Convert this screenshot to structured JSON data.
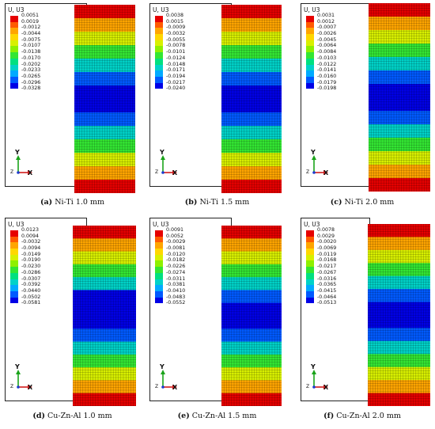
{
  "legend_colors": [
    "#e60000",
    "#ff5a00",
    "#ffa500",
    "#ffd700",
    "#d8f000",
    "#8ef000",
    "#33e633",
    "#00e080",
    "#00d2c8",
    "#00aaff",
    "#005aff",
    "#0000e6"
  ],
  "panels": [
    {
      "key": "ni-1",
      "legend_title": "U, U3",
      "legend_values": [
        "0.0051",
        "0.0019",
        "-0.0012",
        "-0.0044",
        "-0.0075",
        "-0.0107",
        "-0.0138",
        "-0.0170",
        "-0.0202",
        "-0.0233",
        "-0.0265",
        "-0.0296",
        "-0.0328"
      ],
      "caption_letter": "(a)",
      "caption_text": " Ni-Ti 1.0 mm",
      "axis_y": "Y",
      "axis_x": "X",
      "axis_z": "Z",
      "band_colors": [
        "#e60000",
        "#ffa500",
        "#d8f000",
        "#33e633",
        "#00d2c8",
        "#005aff",
        "#0000e6",
        "#0000e6",
        "#005aff",
        "#00d2c8",
        "#33e633",
        "#d8f000",
        "#ffa500",
        "#e60000"
      ]
    },
    {
      "key": "ni-2",
      "legend_title": "U, U3",
      "legend_values": [
        "0.0038",
        "0.0015",
        "-0.0009",
        "-0.0032",
        "-0.0055",
        "-0.0078",
        "-0.0101",
        "-0.0124",
        "-0.0148",
        "-0.0171",
        "-0.0194",
        "-0.0217",
        "-0.0240"
      ],
      "caption_letter": "(b)",
      "caption_text": " Ni-Ti 1.5 mm",
      "axis_y": "Y",
      "axis_x": "X",
      "axis_z": "Z",
      "band_colors": [
        "#e60000",
        "#ffa500",
        "#d8f000",
        "#33e633",
        "#00d2c8",
        "#005aff",
        "#0000e6",
        "#0000e6",
        "#005aff",
        "#00d2c8",
        "#33e633",
        "#d8f000",
        "#ffa500",
        "#e60000"
      ]
    },
    {
      "key": "ni-3",
      "legend_title": "U, U3",
      "legend_values": [
        "0.0031",
        "0.0012",
        "-0.0007",
        "-0.0026",
        "-0.0045",
        "-0.0064",
        "-0.0084",
        "-0.0103",
        "-0.0122",
        "-0.0141",
        "-0.0160",
        "-0.0179",
        "-0.0198"
      ],
      "caption_letter": "(c)",
      "caption_text": " Ni-Ti 2.0 mm",
      "axis_y": "Y",
      "axis_x": "X",
      "axis_z": "Z",
      "band_colors": [
        "#e60000",
        "#ffa500",
        "#d8f000",
        "#33e633",
        "#00d2c8",
        "#005aff",
        "#0000e6",
        "#0000e6",
        "#005aff",
        "#00d2c8",
        "#33e633",
        "#d8f000",
        "#ffa500",
        "#e60000"
      ]
    },
    {
      "key": "cu-1",
      "legend_title": "U, U3",
      "legend_values": [
        "0.0123",
        "0.0094",
        "-0.0032",
        "-0.0094",
        "-0.0149",
        "-0.0190",
        "-0.0230",
        "-0.0286",
        "-0.0307",
        "-0.0392",
        "-0.0440",
        "-0.0502",
        "-0.0581"
      ],
      "caption_letter": "(d)",
      "caption_text": " Cu-Zn-Al 1.0 mm",
      "axis_y": "Y",
      "axis_x": "X",
      "axis_z": "Z",
      "band_colors": [
        "#e60000",
        "#ffa500",
        "#d8f000",
        "#33e633",
        "#00d2c8",
        "#0000e6",
        "#0000e6",
        "#0000e6",
        "#005aff",
        "#00d2c8",
        "#33e633",
        "#d8f000",
        "#ffa500",
        "#e60000"
      ]
    },
    {
      "key": "cu-2",
      "legend_title": "U, U3",
      "legend_values": [
        "0.0091",
        "0.0052",
        "-0.0029",
        "-0.0081",
        "-0.0120",
        "-0.0182",
        "-0.0226",
        "-0.0274",
        "-0.0311",
        "-0.0381",
        "-0.0410",
        "-0.0483",
        "-0.0552"
      ],
      "caption_letter": "(e)",
      "caption_text": " Cu-Zn-Al 1.5 mm",
      "axis_y": "Y",
      "axis_x": "X",
      "axis_z": "Z",
      "band_colors": [
        "#e60000",
        "#ffa500",
        "#d8f000",
        "#33e633",
        "#00d2c8",
        "#005aff",
        "#0000e6",
        "#0000e6",
        "#005aff",
        "#00d2c8",
        "#33e633",
        "#d8f000",
        "#ffa500",
        "#e60000"
      ]
    },
    {
      "key": "cu-3",
      "legend_title": "U, U3",
      "legend_values": [
        "0.0078",
        "0.0029",
        "-0.0020",
        "-0.0069",
        "-0.0119",
        "-0.0168",
        "-0.0217",
        "-0.0267",
        "-0.0316",
        "-0.0365",
        "-0.0415",
        "-0.0464",
        "-0.0513"
      ],
      "caption_letter": "(f)",
      "caption_text": " Cu-Zn-Al 2.0 mm",
      "axis_y": "Y",
      "axis_x": "X",
      "axis_z": "Z",
      "band_colors": [
        "#e60000",
        "#ffa500",
        "#d8f000",
        "#33e633",
        "#00d2c8",
        "#005aff",
        "#0000e6",
        "#0000e6",
        "#005aff",
        "#00d2c8",
        "#33e633",
        "#d8f000",
        "#ffa500",
        "#e60000"
      ]
    }
  ]
}
